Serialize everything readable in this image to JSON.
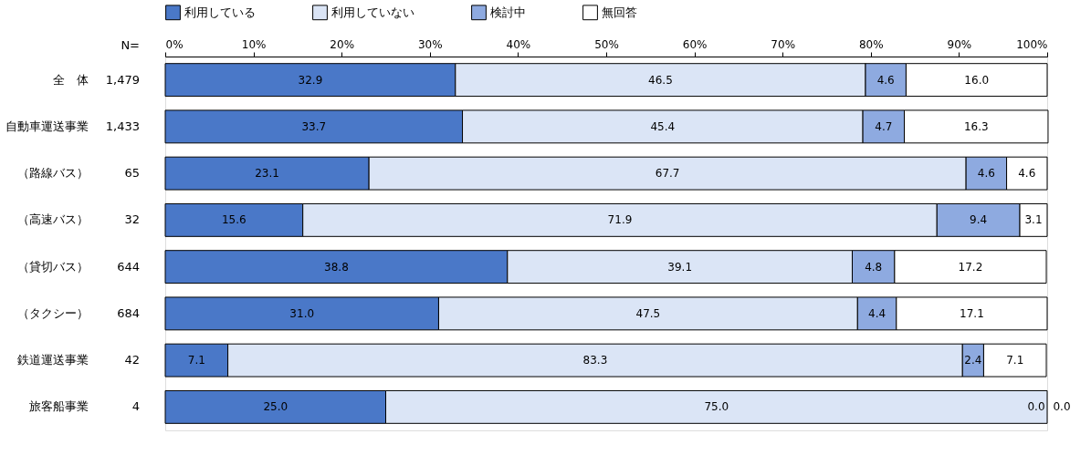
{
  "chart_data": {
    "type": "bar",
    "orientation": "horizontal",
    "stacked": true,
    "legend": "top",
    "grid": false,
    "categories": [
      "全　体",
      "自動車運送事業",
      "（路線バス）",
      "（高速バス）",
      "（貸切バス）",
      "（タクシー）",
      "鉄道運送事業",
      "旅客船事業"
    ],
    "series": [
      {
        "name": "利用している",
        "color": "#4a78c8",
        "values": [
          32.9,
          33.7,
          23.1,
          15.6,
          38.8,
          31.0,
          7.1,
          25.0
        ],
        "value_labels": [
          "32.9",
          "33.7",
          "23.1",
          "15.6",
          "38.8",
          "31.0",
          "7.1",
          "25.0"
        ]
      },
      {
        "name": "利用していない",
        "color": "#dbe5f6",
        "values": [
          46.5,
          45.4,
          67.7,
          71.9,
          39.1,
          47.5,
          83.3,
          75.0
        ],
        "value_labels": [
          "46.5",
          "45.4",
          "67.7",
          "71.9",
          "39.1",
          "47.5",
          "83.3",
          "75.0"
        ]
      },
      {
        "name": "検討中",
        "color": "#8eaae0",
        "values": [
          4.6,
          4.7,
          4.6,
          9.4,
          4.8,
          4.4,
          2.4,
          0.0
        ],
        "value_labels": [
          "4.6",
          "4.7",
          "4.6",
          "9.4",
          "4.8",
          "4.4",
          "2.4",
          "0.0"
        ]
      },
      {
        "name": "無回答",
        "color": "#ffffff",
        "values": [
          16.0,
          16.3,
          4.6,
          3.1,
          17.2,
          17.1,
          7.1,
          0.0
        ],
        "value_labels": [
          "16.0",
          "16.3",
          "4.6",
          "3.1",
          "17.2",
          "17.1",
          "7.1",
          "0.0"
        ]
      }
    ],
    "xlim": [
      0,
      100
    ],
    "xticks": [
      {
        "value": 0,
        "label": "0%"
      },
      {
        "value": 10,
        "label": "10%"
      },
      {
        "value": 20,
        "label": "20%"
      },
      {
        "value": 30,
        "label": "30%"
      },
      {
        "value": 40,
        "label": "40%"
      },
      {
        "value": 50,
        "label": "50%"
      },
      {
        "value": 60,
        "label": "60%"
      },
      {
        "value": 70,
        "label": "70%"
      },
      {
        "value": 80,
        "label": "80%"
      },
      {
        "value": 90,
        "label": "90%"
      },
      {
        "value": 100,
        "label": "100%"
      }
    ],
    "annotations": [
      "N=",
      "1,479",
      "1,433",
      "65",
      "32",
      "644",
      "684",
      "42",
      "4"
    ]
  }
}
